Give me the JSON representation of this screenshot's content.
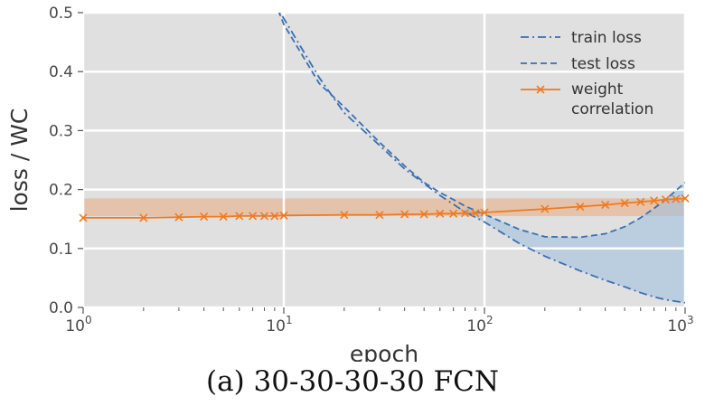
{
  "caption": "(a) 30-30-30-30 FCN",
  "chart_data": {
    "type": "line",
    "xlabel": "epoch",
    "ylabel": "loss / WC",
    "xscale": "log",
    "xlim": [
      1,
      1000
    ],
    "ylim": [
      0,
      0.5
    ],
    "grid": true,
    "background": "#e0e0e0",
    "legend_position": "top-right",
    "x_ticks": [
      {
        "value": 1,
        "base": "10",
        "exp": "0"
      },
      {
        "value": 10,
        "base": "10",
        "exp": "1"
      },
      {
        "value": 100,
        "base": "10",
        "exp": "2"
      },
      {
        "value": 1000,
        "base": "10",
        "exp": "3"
      }
    ],
    "y_ticks": [
      "0.0",
      "0.1",
      "0.2",
      "0.3",
      "0.4",
      "0.5"
    ],
    "series": [
      {
        "name": "train loss",
        "color": "#3a6fb0",
        "style": "dashdot",
        "x": [
          9,
          10,
          15,
          20,
          30,
          40,
          50,
          60,
          70,
          80,
          100,
          150,
          200,
          300,
          400,
          500,
          600,
          700,
          800,
          1000
        ],
        "y": [
          0.52,
          0.49,
          0.39,
          0.33,
          0.275,
          0.235,
          0.21,
          0.19,
          0.175,
          0.162,
          0.145,
          0.108,
          0.087,
          0.062,
          0.046,
          0.035,
          0.025,
          0.018,
          0.013,
          0.008
        ]
      },
      {
        "name": "test loss",
        "color": "#3a6fb0",
        "style": "dashed",
        "x": [
          9,
          10,
          15,
          20,
          30,
          40,
          50,
          60,
          70,
          80,
          100,
          150,
          200,
          300,
          400,
          500,
          600,
          700,
          800,
          1000
        ],
        "y": [
          0.52,
          0.48,
          0.38,
          0.34,
          0.28,
          0.24,
          0.212,
          0.195,
          0.183,
          0.172,
          0.158,
          0.132,
          0.12,
          0.119,
          0.125,
          0.137,
          0.152,
          0.168,
          0.183,
          0.212
        ]
      },
      {
        "name": "weight\ncorrelation",
        "color": "#f07a20",
        "style": "solid-x-markers",
        "x": [
          1,
          2,
          3,
          4,
          5,
          6,
          7,
          8,
          9,
          10,
          20,
          30,
          40,
          50,
          60,
          70,
          80,
          90,
          100,
          200,
          300,
          400,
          500,
          600,
          700,
          800,
          900,
          1000
        ],
        "y": [
          0.152,
          0.152,
          0.153,
          0.154,
          0.154,
          0.155,
          0.155,
          0.155,
          0.155,
          0.156,
          0.157,
          0.157,
          0.158,
          0.158,
          0.159,
          0.159,
          0.16,
          0.16,
          0.161,
          0.167,
          0.171,
          0.174,
          0.177,
          0.179,
          0.181,
          0.183,
          0.184,
          0.185
        ]
      }
    ],
    "bands": [
      {
        "description": "orange shaded band",
        "color": "#f07a20",
        "x": [
          1,
          1000
        ],
        "y_range": [
          0.155,
          0.185
        ]
      },
      {
        "description": "blue shaded gap between train and test loss",
        "color": "#9dbfe0",
        "x_from": 80
      }
    ],
    "legend": {
      "entries": [
        {
          "label": "train loss",
          "series": 0
        },
        {
          "label": "test loss",
          "series": 1
        },
        {
          "label_lines": [
            "weight",
            "correlation"
          ],
          "series": 2
        }
      ]
    }
  }
}
